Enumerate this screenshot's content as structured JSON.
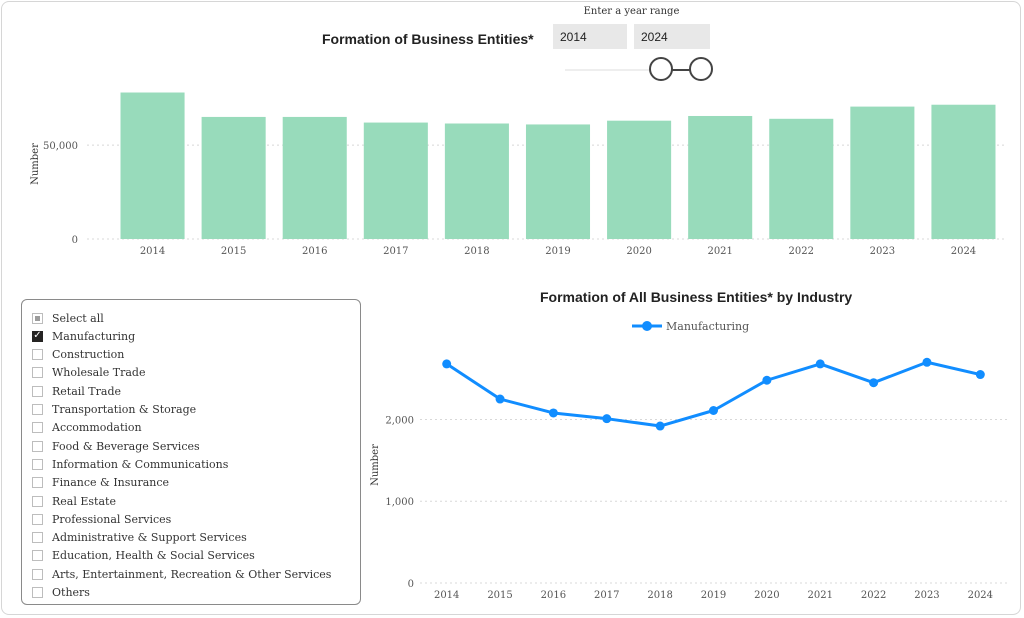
{
  "slicer": {
    "caption": "Enter a year range",
    "start_year": "2014",
    "end_year": "2024"
  },
  "industry_filter": {
    "items": [
      {
        "label": "Select all",
        "state": "partial"
      },
      {
        "label": "Manufacturing",
        "state": "checked"
      },
      {
        "label": "Construction",
        "state": "unchecked"
      },
      {
        "label": "Wholesale Trade",
        "state": "unchecked"
      },
      {
        "label": "Retail Trade",
        "state": "unchecked"
      },
      {
        "label": "Transportation & Storage",
        "state": "unchecked"
      },
      {
        "label": "Accommodation",
        "state": "unchecked"
      },
      {
        "label": "Food & Beverage Services",
        "state": "unchecked"
      },
      {
        "label": "Information & Communications",
        "state": "unchecked"
      },
      {
        "label": "Finance & Insurance",
        "state": "unchecked"
      },
      {
        "label": "Real Estate",
        "state": "unchecked"
      },
      {
        "label": "Professional Services",
        "state": "unchecked"
      },
      {
        "label": "Administrative & Support Services",
        "state": "unchecked"
      },
      {
        "label": "Education, Health & Social Services",
        "state": "unchecked"
      },
      {
        "label": "Arts, Entertainment, Recreation & Other Services",
        "state": "unchecked"
      },
      {
        "label": "Others",
        "state": "unchecked"
      }
    ]
  },
  "chart_data": [
    {
      "type": "bar",
      "title": "Formation of Business Entities*",
      "xlabel": "",
      "ylabel": "Number",
      "categories": [
        "2014",
        "2015",
        "2016",
        "2017",
        "2018",
        "2019",
        "2020",
        "2021",
        "2022",
        "2023",
        "2024"
      ],
      "values": [
        78000,
        65000,
        65000,
        62000,
        61500,
        61000,
        63000,
        65500,
        64000,
        70500,
        71500
      ],
      "yticks": [
        0,
        50000
      ],
      "ytick_labels": [
        "0",
        "50,000"
      ],
      "ylim": [
        0,
        82000
      ],
      "color": "#98dbbb",
      "grid": true
    },
    {
      "type": "line",
      "title": "Formation of All Business Entities* by Industry",
      "xlabel": "",
      "ylabel": "Number",
      "x": [
        "2014",
        "2015",
        "2016",
        "2017",
        "2018",
        "2019",
        "2020",
        "2021",
        "2022",
        "2023",
        "2024"
      ],
      "series": [
        {
          "name": "Manufacturing",
          "values": [
            2680,
            2250,
            2080,
            2010,
            1920,
            2110,
            2480,
            2680,
            2450,
            2700,
            2550
          ],
          "color": "#118dff"
        }
      ],
      "yticks": [
        0,
        1000,
        2000
      ],
      "ytick_labels": [
        "0",
        "1,000",
        "2,000"
      ],
      "ylim": [
        0,
        2850
      ],
      "legend": "top-center",
      "grid": true
    }
  ]
}
